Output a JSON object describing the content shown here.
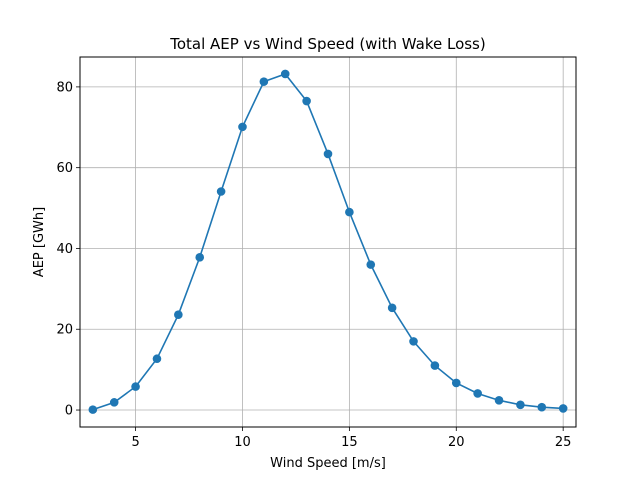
{
  "chart_data": {
    "type": "line",
    "title": "Total AEP vs Wind Speed (with Wake Loss)",
    "xlabel": "Wind Speed [m/s]",
    "ylabel": "AEP [GWh]",
    "xlim": [
      2.4,
      25.6
    ],
    "ylim": [
      -4.2,
      87.4
    ],
    "xticks": [
      5,
      10,
      15,
      20,
      25
    ],
    "yticks": [
      0,
      20,
      40,
      60,
      80
    ],
    "grid": true,
    "marker": "circle",
    "color": "#1f77b4",
    "x": [
      3,
      4,
      5,
      6,
      7,
      8,
      9,
      10,
      11,
      12,
      13,
      14,
      15,
      16,
      17,
      18,
      19,
      20,
      21,
      22,
      23,
      24,
      25
    ],
    "series": [
      {
        "values": [
          0.1,
          1.9,
          5.8,
          12.7,
          23.6,
          37.8,
          54.1,
          70.1,
          81.3,
          83.2,
          76.5,
          63.4,
          49.0,
          36.0,
          25.3,
          17.0,
          11.0,
          6.7,
          4.1,
          2.4,
          1.3,
          0.7,
          0.4
        ]
      }
    ]
  }
}
